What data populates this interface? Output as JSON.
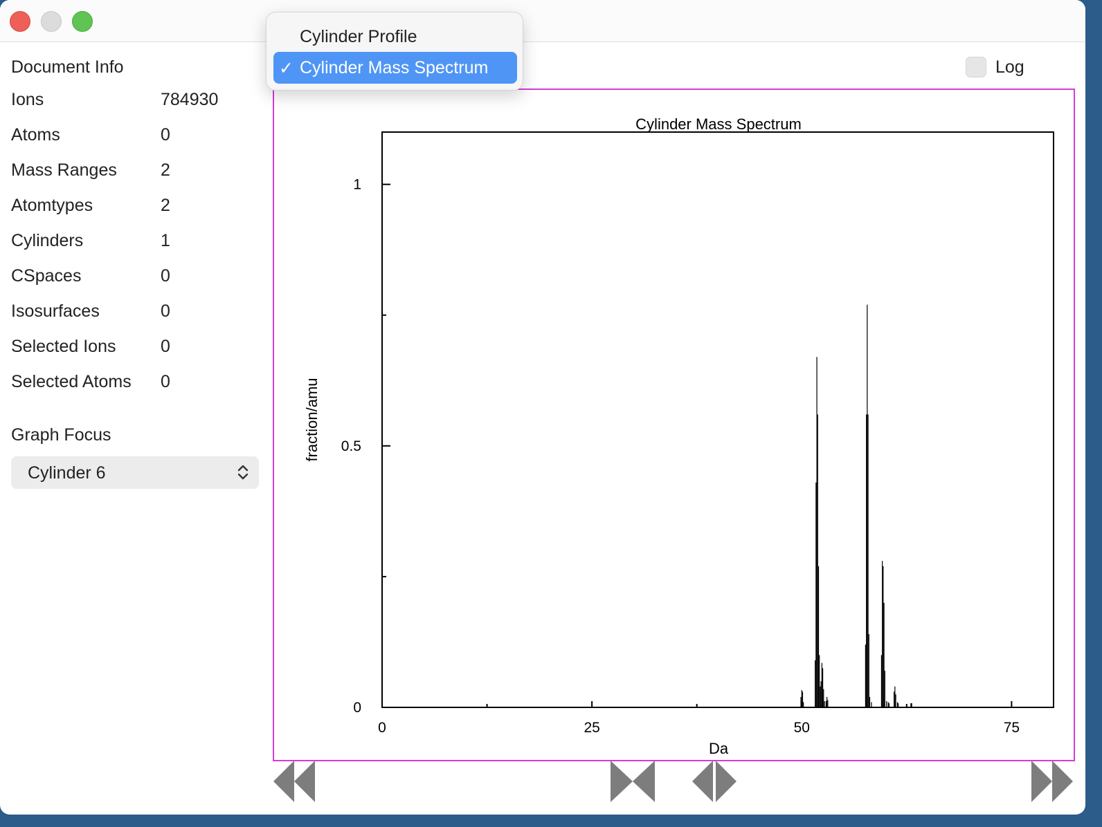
{
  "document_info": {
    "title": "Document Info",
    "rows": [
      {
        "label": "Ions",
        "value": "784930"
      },
      {
        "label": "Atoms",
        "value": "0"
      },
      {
        "label": "Mass Ranges",
        "value": "2"
      },
      {
        "label": "Atomtypes",
        "value": "2"
      },
      {
        "label": "Cylinders",
        "value": "1"
      },
      {
        "label": "CSpaces",
        "value": "0"
      },
      {
        "label": "Isosurfaces",
        "value": "0"
      },
      {
        "label": "Selected Ions",
        "value": "0"
      },
      {
        "label": "Selected Atoms",
        "value": "0"
      }
    ]
  },
  "graph_focus": {
    "title": "Graph Focus",
    "selected": "Cylinder 6"
  },
  "log_toggle": {
    "label": "Log",
    "checked": false
  },
  "plot_menu": {
    "items": [
      {
        "label": "Cylinder Profile",
        "checked": false
      },
      {
        "label": "Cylinder Mass Spectrum",
        "checked": true
      }
    ],
    "check_glyph": "✓"
  },
  "colors": {
    "selection": "#4f95f5",
    "chart_border": "#d63ad6",
    "close": "#ee5f58",
    "maximize": "#5fc454"
  },
  "chart_data": {
    "type": "bar",
    "title": "Cylinder Mass Spectrum",
    "xlabel": "Da",
    "ylabel": "fraction/amu",
    "xlim": [
      0,
      80
    ],
    "ylim": [
      0,
      1.1
    ],
    "x_ticks": [
      0,
      25,
      50,
      75
    ],
    "x_minor_ticks": [
      12.5,
      37.5,
      62.5
    ],
    "y_ticks": [
      0,
      0.5,
      1
    ],
    "y_tick_labels": [
      "0",
      "0.5",
      "1"
    ],
    "y_minor_ticks": [
      0.25,
      0.75
    ],
    "bin_width": 0.1,
    "points": [
      {
        "x": 49.9,
        "y": 0.02
      },
      {
        "x": 50.0,
        "y": 0.033
      },
      {
        "x": 50.1,
        "y": 0.03
      },
      {
        "x": 50.2,
        "y": 0.01
      },
      {
        "x": 51.6,
        "y": 0.09
      },
      {
        "x": 51.7,
        "y": 0.43
      },
      {
        "x": 51.8,
        "y": 0.67
      },
      {
        "x": 51.9,
        "y": 0.56
      },
      {
        "x": 52.0,
        "y": 0.27
      },
      {
        "x": 52.1,
        "y": 0.1
      },
      {
        "x": 52.2,
        "y": 0.04
      },
      {
        "x": 52.3,
        "y": 0.05
      },
      {
        "x": 52.4,
        "y": 0.085
      },
      {
        "x": 52.5,
        "y": 0.075
      },
      {
        "x": 52.6,
        "y": 0.035
      },
      {
        "x": 52.7,
        "y": 0.012
      },
      {
        "x": 52.9,
        "y": 0.012
      },
      {
        "x": 53.0,
        "y": 0.02
      },
      {
        "x": 53.1,
        "y": 0.014
      },
      {
        "x": 57.6,
        "y": 0.12
      },
      {
        "x": 57.7,
        "y": 0.56
      },
      {
        "x": 57.8,
        "y": 0.77
      },
      {
        "x": 57.9,
        "y": 0.56
      },
      {
        "x": 58.0,
        "y": 0.14
      },
      {
        "x": 58.1,
        "y": 0.02
      },
      {
        "x": 58.3,
        "y": 0.01
      },
      {
        "x": 59.5,
        "y": 0.1
      },
      {
        "x": 59.6,
        "y": 0.28
      },
      {
        "x": 59.7,
        "y": 0.27
      },
      {
        "x": 59.8,
        "y": 0.2
      },
      {
        "x": 59.9,
        "y": 0.07
      },
      {
        "x": 60.1,
        "y": 0.012
      },
      {
        "x": 60.3,
        "y": 0.01
      },
      {
        "x": 60.4,
        "y": 0.008
      },
      {
        "x": 61.0,
        "y": 0.03
      },
      {
        "x": 61.1,
        "y": 0.04
      },
      {
        "x": 61.2,
        "y": 0.025
      },
      {
        "x": 61.4,
        "y": 0.01
      },
      {
        "x": 61.5,
        "y": 0.008
      },
      {
        "x": 63.0,
        "y": 0.008
      },
      {
        "x": 63.1,
        "y": 0.008
      }
    ]
  }
}
